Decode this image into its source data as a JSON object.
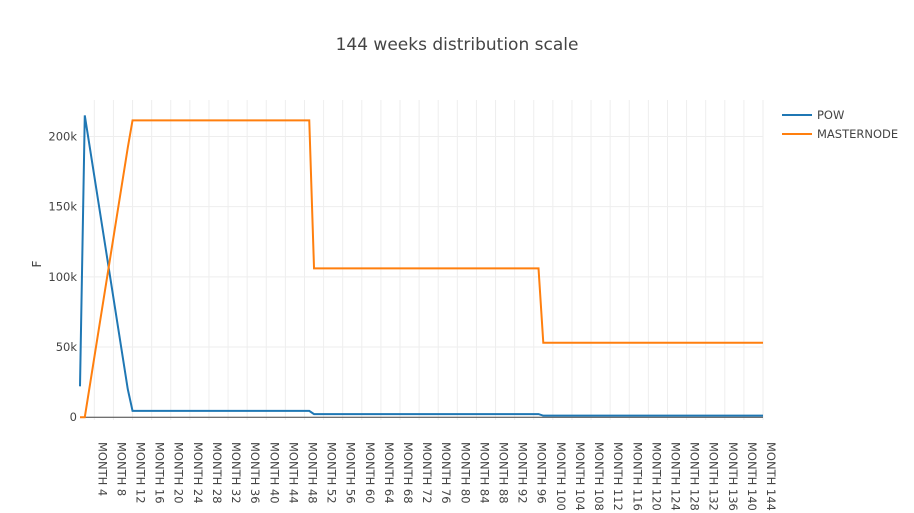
{
  "chart_data": {
    "type": "line",
    "title": "144 weeks distribution scale",
    "xlabel": "",
    "ylabel": "F",
    "ylim": [
      -2000,
      226000
    ],
    "xlim": [
      1,
      144
    ],
    "grid": true,
    "legend": "top-right",
    "yticks": [
      0,
      50000,
      100000,
      150000,
      200000
    ],
    "ytick_labels": [
      "0",
      "50k",
      "100k",
      "150k",
      "200k"
    ],
    "xticks": [
      4,
      8,
      12,
      16,
      20,
      24,
      28,
      32,
      36,
      40,
      44,
      48,
      52,
      56,
      60,
      64,
      68,
      72,
      76,
      80,
      84,
      88,
      92,
      96,
      100,
      104,
      108,
      112,
      116,
      120,
      124,
      128,
      132,
      136,
      140,
      144
    ],
    "xtick_labels": [
      "MONTH 4",
      "MONTH 8",
      "MONTH 12",
      "MONTH 16",
      "MONTH 20",
      "MONTH 24",
      "MONTH 28",
      "MONTH 32",
      "MONTH 36",
      "MONTH 40",
      "MONTH 44",
      "MONTH 48",
      "MONTH 52",
      "MONTH 56",
      "MONTH 60",
      "MONTH 64",
      "MONTH 68",
      "MONTH 72",
      "MONTH 76",
      "MONTH 80",
      "MONTH 84",
      "MONTH 88",
      "MONTH 92",
      "MONTH 96",
      "MONTH 100",
      "MONTH 104",
      "MONTH 108",
      "MONTH 112",
      "MONTH 116",
      "MONTH 120",
      "MONTH 124",
      "MONTH 128",
      "MONTH 132",
      "MONTH 136",
      "MONTH 140",
      "MONTH 144"
    ],
    "series": [
      {
        "name": "POW",
        "color": "#1f77b4",
        "points": [
          [
            1,
            22000
          ],
          [
            2,
            215000
          ],
          [
            11,
            20000
          ],
          [
            12,
            4500
          ],
          [
            49,
            4500
          ],
          [
            50,
            2200
          ],
          [
            97,
            2200
          ],
          [
            98,
            1100
          ],
          [
            144,
            1100
          ]
        ]
      },
      {
        "name": "MASTERNODE",
        "color": "#ff7f0e",
        "points": [
          [
            1,
            0
          ],
          [
            2,
            0
          ],
          [
            11,
            192000
          ],
          [
            12,
            211500
          ],
          [
            49,
            211500
          ],
          [
            50,
            106000
          ],
          [
            97,
            106000
          ],
          [
            98,
            53000
          ],
          [
            144,
            53000
          ]
        ]
      }
    ]
  }
}
